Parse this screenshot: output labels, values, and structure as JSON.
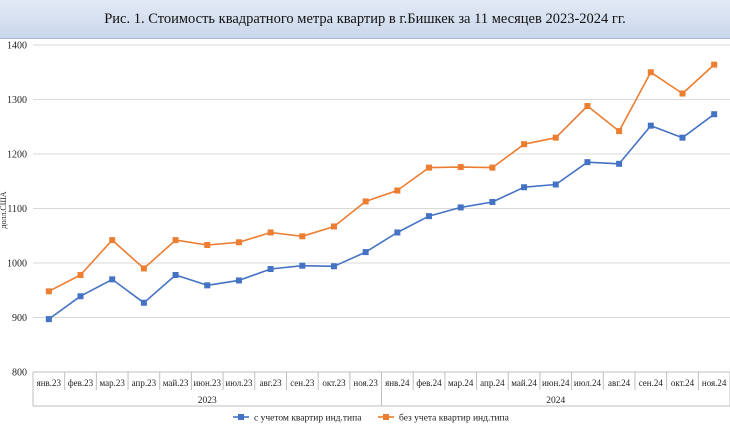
{
  "title": "Рис. 1. Стоимость квадратного метра квартир в г.Бишкек за 11 месяцев 2023-2024 гг.",
  "chart_data": {
    "type": "line",
    "title": "Рис. 1. Стоимость квадратного метра квартир в г.Бишкек за 11 месяцев 2023-2024 гг.",
    "ylabel": "долл.США",
    "xlabel": "",
    "ylim": [
      800,
      1400
    ],
    "yticks": [
      800,
      900,
      1000,
      1100,
      1200,
      1300,
      1400
    ],
    "grid": true,
    "legend_position": "bottom",
    "categories": [
      "янв.23",
      "фев.23",
      "мар.23",
      "апр.23",
      "май.23",
      "июн.23",
      "июл.23",
      "авг.23",
      "сен.23",
      "окт.23",
      "ноя.23",
      "янв.24",
      "фев.24",
      "мар.24",
      "апр.24",
      "май.24",
      "июн.24",
      "июл.24",
      "авг.24",
      "сен.24",
      "окт.24",
      "ноя.24"
    ],
    "groups": [
      {
        "label": "2023",
        "count": 11
      },
      {
        "label": "2024",
        "count": 11
      }
    ],
    "series": [
      {
        "name": "с учетом квартир инд.типа",
        "color": "#4472c4",
        "values": [
          897,
          939,
          970,
          927,
          978,
          959,
          968,
          989,
          995,
          994,
          1020,
          1056,
          1086,
          1102,
          1112,
          1139,
          1144,
          1185,
          1182,
          1252,
          1230,
          1273
        ]
      },
      {
        "name": "без учета квартир инд.типа",
        "color": "#ed7d31",
        "values": [
          948,
          978,
          1042,
          990,
          1042,
          1033,
          1038,
          1056,
          1049,
          1067,
          1113,
          1133,
          1175,
          1176,
          1175,
          1218,
          1230,
          1288,
          1242,
          1350,
          1311,
          1364
        ]
      }
    ]
  }
}
